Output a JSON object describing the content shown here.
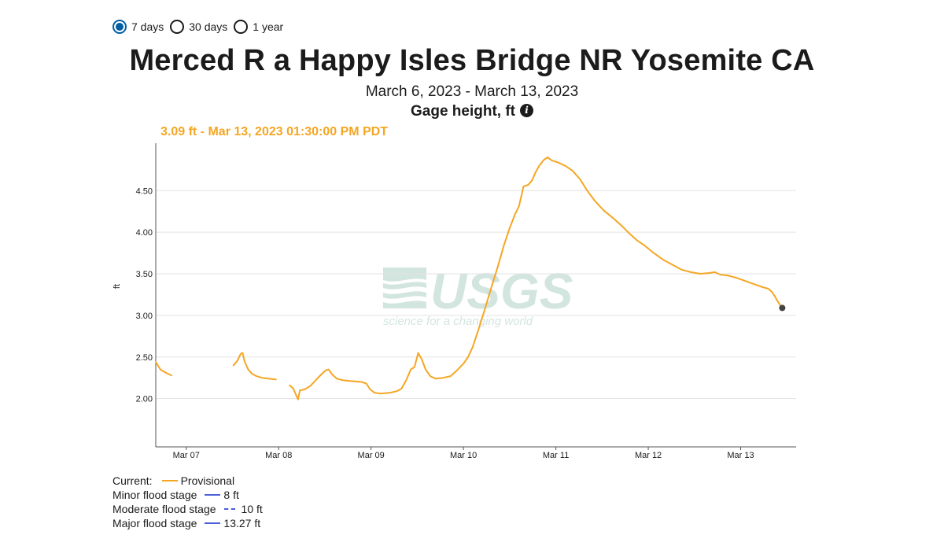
{
  "period_options": [
    {
      "label": "7 days",
      "selected": true
    },
    {
      "label": "30 days",
      "selected": false
    },
    {
      "label": "1 year",
      "selected": false
    }
  ],
  "title": "Merced R a Happy Isles Bridge NR Yosemite CA",
  "date_range": "March 6, 2023 - March 13, 2023",
  "parameter": "Gage height, ft",
  "current_reading": "3.09 ft - Mar 13, 2023 01:30:00 PM PDT",
  "watermark": {
    "logo": "USGS",
    "tagline": "science for a changing world"
  },
  "legend": {
    "current_label": "Current:",
    "current_series": "Provisional",
    "flood_stages": [
      {
        "label": "Minor flood stage",
        "value": "8 ft",
        "style": "solid"
      },
      {
        "label": "Moderate flood stage",
        "value": "10 ft",
        "style": "dashed"
      },
      {
        "label": "Major flood stage",
        "value": "13.27 ft",
        "style": "solid"
      }
    ]
  },
  "colors": {
    "series": "#f5a623",
    "flood_stage": "#4a5fd8",
    "accent": "#005ea2",
    "watermark": "#cfe3dc"
  },
  "chart_data": {
    "type": "line",
    "title": "Merced R a Happy Isles Bridge NR Yosemite CA",
    "subtitle": "March 6, 2023 - March 13, 2023",
    "xlabel": "",
    "ylabel": "ft",
    "xlim": [
      6.67,
      13.6
    ],
    "ylim": [
      1.42,
      5.07
    ],
    "y_ticks": [
      2.0,
      2.5,
      3.0,
      3.5,
      4.0,
      4.5
    ],
    "y_tick_labels": [
      "2.00",
      "2.50",
      "3.00",
      "3.50",
      "4.00",
      "4.50"
    ],
    "x_ticks": [
      7,
      8,
      9,
      10,
      11,
      12,
      13
    ],
    "x_tick_labels": [
      "Mar 07",
      "Mar 08",
      "Mar 09",
      "Mar 10",
      "Mar 11",
      "Mar 12",
      "Mar 13"
    ],
    "grid": true,
    "series": [
      {
        "name": "Provisional",
        "segments": [
          [
            [
              6.67,
              2.44
            ],
            [
              6.72,
              2.35
            ],
            [
              6.78,
              2.31
            ],
            [
              6.84,
              2.28
            ]
          ],
          [
            [
              7.51,
              2.4
            ],
            [
              7.55,
              2.45
            ],
            [
              7.59,
              2.54
            ],
            [
              7.61,
              2.55
            ],
            [
              7.63,
              2.45
            ],
            [
              7.67,
              2.35
            ],
            [
              7.71,
              2.3
            ],
            [
              7.76,
              2.27
            ],
            [
              7.82,
              2.25
            ],
            [
              7.89,
              2.24
            ],
            [
              7.97,
              2.23
            ]
          ],
          [
            [
              8.12,
              2.16
            ],
            [
              8.16,
              2.12
            ],
            [
              8.19,
              2.04
            ],
            [
              8.21,
              1.99
            ],
            [
              8.23,
              2.1
            ],
            [
              8.28,
              2.11
            ],
            [
              8.34,
              2.15
            ],
            [
              8.4,
              2.22
            ],
            [
              8.46,
              2.29
            ],
            [
              8.51,
              2.34
            ],
            [
              8.54,
              2.35
            ],
            [
              8.58,
              2.29
            ],
            [
              8.63,
              2.24
            ],
            [
              8.7,
              2.22
            ],
            [
              8.8,
              2.21
            ],
            [
              8.9,
              2.2
            ],
            [
              8.95,
              2.18
            ],
            [
              8.99,
              2.11
            ],
            [
              9.04,
              2.07
            ],
            [
              9.1,
              2.06
            ],
            [
              9.2,
              2.07
            ],
            [
              9.28,
              2.09
            ],
            [
              9.33,
              2.12
            ],
            [
              9.38,
              2.22
            ],
            [
              9.43,
              2.35
            ],
            [
              9.47,
              2.38
            ],
            [
              9.51,
              2.55
            ],
            [
              9.55,
              2.47
            ],
            [
              9.59,
              2.35
            ],
            [
              9.64,
              2.27
            ],
            [
              9.7,
              2.24
            ],
            [
              9.78,
              2.25
            ],
            [
              9.86,
              2.27
            ],
            [
              9.93,
              2.34
            ],
            [
              10.0,
              2.42
            ],
            [
              10.05,
              2.5
            ],
            [
              10.1,
              2.62
            ],
            [
              10.16,
              2.82
            ],
            [
              10.23,
              3.07
            ],
            [
              10.3,
              3.33
            ],
            [
              10.37,
              3.58
            ],
            [
              10.44,
              3.85
            ],
            [
              10.5,
              4.05
            ],
            [
              10.56,
              4.22
            ],
            [
              10.6,
              4.31
            ],
            [
              10.63,
              4.45
            ],
            [
              10.65,
              4.55
            ],
            [
              10.7,
              4.57
            ],
            [
              10.74,
              4.62
            ],
            [
              10.78,
              4.72
            ],
            [
              10.82,
              4.8
            ],
            [
              10.87,
              4.87
            ],
            [
              10.91,
              4.9
            ],
            [
              10.96,
              4.86
            ],
            [
              11.02,
              4.84
            ],
            [
              11.1,
              4.8
            ],
            [
              11.18,
              4.74
            ],
            [
              11.26,
              4.64
            ],
            [
              11.34,
              4.5
            ],
            [
              11.42,
              4.38
            ],
            [
              11.52,
              4.26
            ],
            [
              11.62,
              4.17
            ],
            [
              11.72,
              4.07
            ],
            [
              11.8,
              3.98
            ],
            [
              11.88,
              3.9
            ],
            [
              11.96,
              3.84
            ],
            [
              12.06,
              3.75
            ],
            [
              12.16,
              3.67
            ],
            [
              12.26,
              3.61
            ],
            [
              12.36,
              3.55
            ],
            [
              12.46,
              3.52
            ],
            [
              12.56,
              3.5
            ],
            [
              12.66,
              3.51
            ],
            [
              12.72,
              3.52
            ],
            [
              12.78,
              3.49
            ],
            [
              12.86,
              3.48
            ],
            [
              12.96,
              3.45
            ],
            [
              13.06,
              3.41
            ],
            [
              13.16,
              3.37
            ],
            [
              13.24,
              3.34
            ],
            [
              13.3,
              3.32
            ],
            [
              13.34,
              3.28
            ],
            [
              13.37,
              3.23
            ],
            [
              13.4,
              3.17
            ],
            [
              13.43,
              3.12
            ],
            [
              13.45,
              3.09
            ]
          ]
        ]
      }
    ],
    "current_point": {
      "x": 13.45,
      "y": 3.09
    }
  }
}
